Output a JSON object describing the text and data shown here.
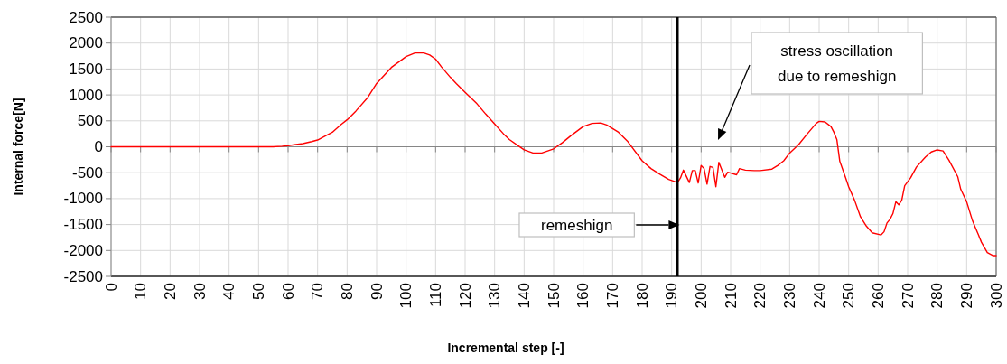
{
  "chart_data": {
    "type": "line",
    "xlabel": "Incremental step [-]",
    "ylabel": "Internal force[N]",
    "x": [
      0,
      55,
      58,
      60,
      62,
      65,
      68,
      70,
      75,
      78,
      80,
      83,
      87,
      90,
      95,
      100,
      103,
      106,
      108,
      110,
      112,
      115,
      117,
      120,
      124,
      127,
      130,
      133,
      135,
      138,
      140,
      143,
      146,
      150,
      153,
      156,
      160,
      163,
      166,
      168,
      170,
      172,
      175,
      180,
      183,
      186,
      189,
      192,
      193,
      194,
      196,
      197,
      198,
      199,
      200,
      201,
      202,
      203,
      204,
      205,
      206,
      208,
      209,
      212,
      213,
      215,
      218,
      220,
      224,
      226,
      228,
      230,
      233,
      236,
      239,
      240,
      242,
      244,
      245,
      246,
      247,
      248,
      249,
      250,
      252,
      254,
      256,
      258,
      261,
      262,
      263,
      264,
      265,
      266,
      267,
      268,
      269,
      271,
      273,
      276,
      278,
      280,
      282,
      284,
      287,
      288,
      290,
      292,
      294,
      295,
      297,
      299,
      300
    ],
    "series": [
      {
        "color": "#ff0000",
        "values": [
          0,
          0,
          10,
          20,
          40,
          60,
          100,
          130,
          280,
          430,
          520,
          690,
          950,
          1220,
          1530,
          1740,
          1810,
          1810,
          1770,
          1690,
          1540,
          1340,
          1220,
          1050,
          830,
          630,
          440,
          250,
          140,
          20,
          -60,
          -120,
          -120,
          -40,
          80,
          220,
          390,
          450,
          460,
          420,
          350,
          280,
          110,
          -270,
          -420,
          -530,
          -630,
          -690,
          -600,
          -450,
          -690,
          -460,
          -460,
          -700,
          -360,
          -420,
          -720,
          -380,
          -400,
          -770,
          -300,
          -590,
          -490,
          -540,
          -420,
          -450,
          -460,
          -460,
          -430,
          -360,
          -270,
          -120,
          40,
          250,
          450,
          490,
          480,
          390,
          280,
          140,
          -280,
          -440,
          -600,
          -770,
          -1030,
          -1350,
          -1530,
          -1660,
          -1700,
          -1640,
          -1470,
          -1400,
          -1290,
          -1060,
          -1120,
          -1030,
          -750,
          -600,
          -390,
          -200,
          -100,
          -60,
          -80,
          -260,
          -580,
          -820,
          -1060,
          -1430,
          -1700,
          -1840,
          -2040,
          -2100,
          -2100
        ]
      }
    ],
    "xlim": [
      0,
      300
    ],
    "ylim": [
      -2500,
      2500
    ],
    "xticks": [
      0,
      10,
      20,
      30,
      40,
      50,
      60,
      70,
      80,
      90,
      100,
      110,
      120,
      130,
      140,
      150,
      160,
      170,
      180,
      190,
      200,
      210,
      220,
      230,
      240,
      250,
      260,
      270,
      280,
      290,
      300
    ],
    "yticks": [
      -2500,
      -2000,
      -1500,
      -1000,
      -500,
      0,
      500,
      1000,
      1500,
      2000,
      2500
    ],
    "grid": true,
    "ref_lines": [
      {
        "axis": "x",
        "value": 192,
        "color": "#000000"
      }
    ],
    "annotations": [
      "remeshign",
      "stress oscillation\ndue to remeshign"
    ]
  }
}
